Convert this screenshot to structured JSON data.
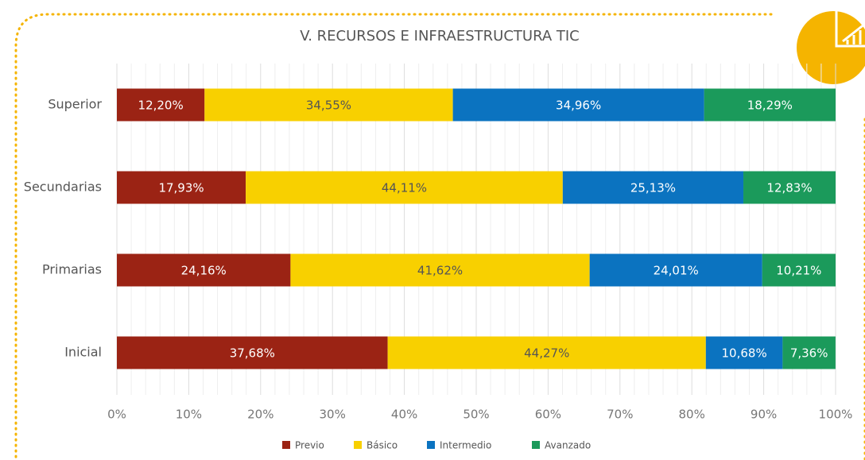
{
  "chart_data": {
    "type": "stacked-bar-horizontal",
    "title": "V. RECURSOS E INFRAESTRUCTURA TIC",
    "categories": [
      "Superior",
      "Secundarias",
      "Primarias",
      "Inicial"
    ],
    "series": [
      {
        "name": "Previo",
        "color": "#9b2314",
        "values": [
          12.2,
          17.93,
          24.16,
          37.68
        ],
        "value_labels": [
          "12,20%",
          "17,93%",
          "24,16%",
          "37,68%"
        ]
      },
      {
        "name": "Básico",
        "color": "#f8d000",
        "values": [
          34.55,
          44.11,
          41.62,
          44.27
        ],
        "value_labels": [
          "34,55%",
          "44,11%",
          "41,62%",
          "44,27%"
        ]
      },
      {
        "name": "Intermedio",
        "color": "#0b73c0",
        "values": [
          34.96,
          25.13,
          24.01,
          10.68
        ],
        "value_labels": [
          "34,96%",
          "25,13%",
          "24,01%",
          "10,68%"
        ]
      },
      {
        "name": "Avanzado",
        "color": "#1b9a5b",
        "values": [
          18.29,
          12.83,
          10.21,
          7.36
        ],
        "value_labels": [
          "18,29%",
          "12,83%",
          "10,21%",
          "7,36%"
        ]
      }
    ],
    "xlim": [
      0,
      100
    ],
    "xticks": [
      {
        "value": 0,
        "label": "0%"
      },
      {
        "value": 10,
        "label": "10%"
      },
      {
        "value": 20,
        "label": "20%"
      },
      {
        "value": 30,
        "label": "30%"
      },
      {
        "value": 40,
        "label": "40%"
      },
      {
        "value": 50,
        "label": "50%"
      },
      {
        "value": 60,
        "label": "60%"
      },
      {
        "value": 70,
        "label": "70%"
      },
      {
        "value": 80,
        "label": "80%"
      },
      {
        "value": 90,
        "label": "90%"
      },
      {
        "value": 100,
        "label": "100%"
      }
    ],
    "grid": true,
    "legend": "bottom"
  }
}
